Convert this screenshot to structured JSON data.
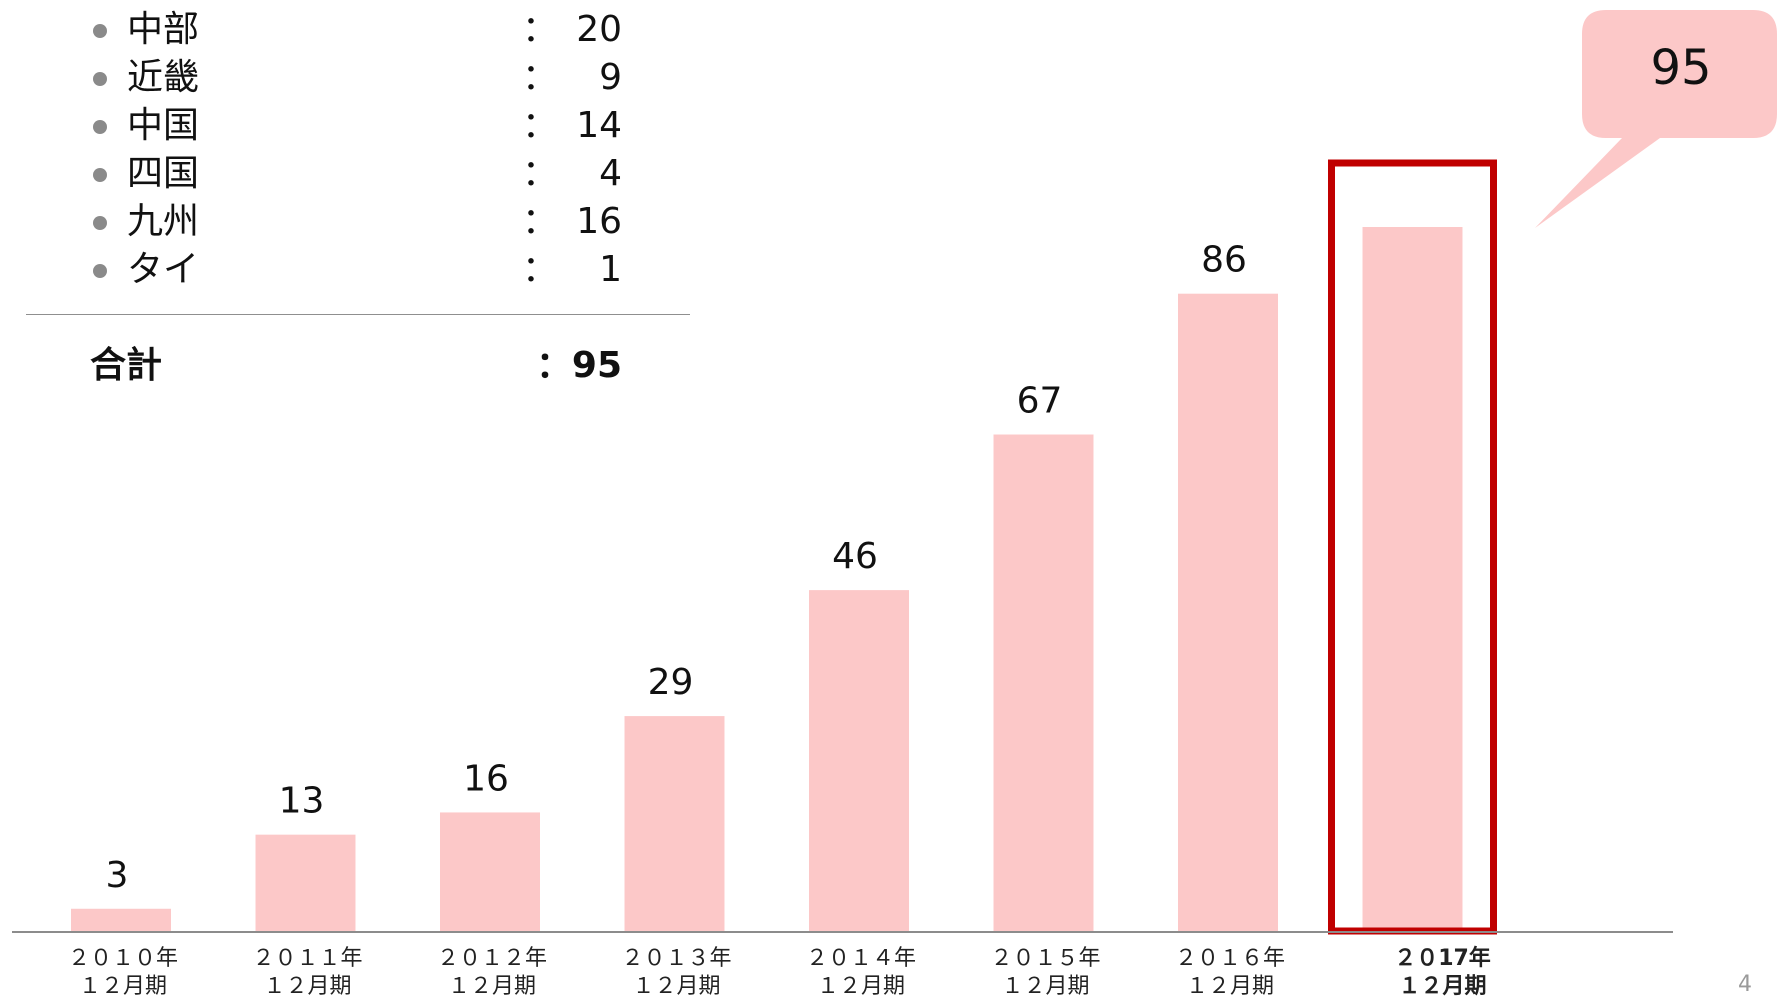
{
  "regions": [
    {
      "name": "中部",
      "colon": "：",
      "value": "20"
    },
    {
      "name": "近畿",
      "colon": "：",
      "value": "9"
    },
    {
      "name": "中国",
      "colon": "：",
      "value": "14"
    },
    {
      "name": "四国",
      "colon": "：",
      "value": "4"
    },
    {
      "name": "九州",
      "colon": "：",
      "value": "16"
    },
    {
      "name": "タイ",
      "colon": "：",
      "value": "1"
    }
  ],
  "total": {
    "label": "合計",
    "colon": "：",
    "value": "95"
  },
  "callout": {
    "value": "95"
  },
  "page_number": "4",
  "colors": {
    "bar": "#fcc8c8",
    "highlight_border": "#c00000",
    "callout_fill": "#fcc8c8",
    "axis": "#8c8c8c"
  },
  "chart_data": {
    "type": "bar",
    "categories": [
      [
        "２０１０年",
        "１２月期"
      ],
      [
        "２０１１年",
        "１２月期"
      ],
      [
        "２０１２年",
        "１２月期"
      ],
      [
        "２０１３年",
        "１２月期"
      ],
      [
        "２０１４年",
        "１２月期"
      ],
      [
        "２０１５年",
        "１２月期"
      ],
      [
        "２０１６年",
        "１２月期"
      ],
      [
        "２０17年",
        "１２月期"
      ]
    ],
    "values": [
      3,
      13,
      16,
      29,
      46,
      67,
      86,
      95
    ],
    "highlight_index": 7,
    "ylim": [
      0,
      95
    ],
    "grid": false,
    "data_labels": true
  }
}
